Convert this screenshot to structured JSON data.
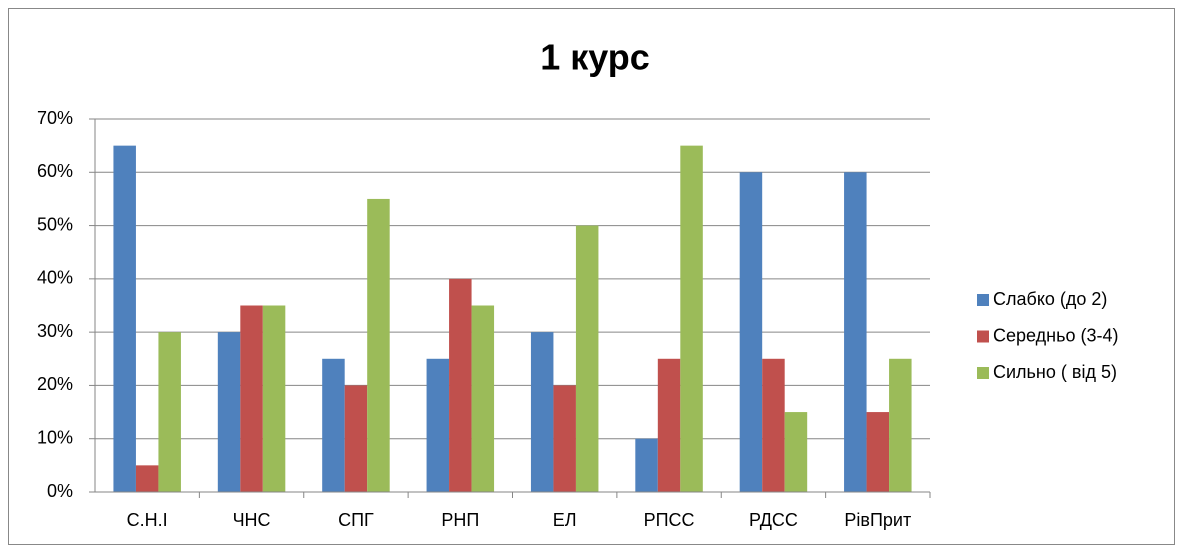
{
  "chart_data": {
    "type": "bar",
    "title": "1 курс",
    "categories": [
      "С.Н.І",
      "ЧНС",
      "СПГ",
      "РНП",
      "ЕЛ",
      "РПСС",
      "РДСС",
      "РівПрит"
    ],
    "series": [
      {
        "name": "Слабко (до 2)",
        "color": "#4f81bd",
        "values": [
          65,
          30,
          25,
          25,
          30,
          10,
          60,
          60
        ]
      },
      {
        "name": "Середньо (3-4)",
        "color": "#c0504d",
        "values": [
          5,
          35,
          20,
          40,
          20,
          25,
          25,
          15
        ]
      },
      {
        "name": "Сильно ( від 5)",
        "color": "#9bbb59",
        "values": [
          30,
          35,
          55,
          35,
          50,
          65,
          15,
          25
        ]
      }
    ],
    "ylim": [
      0,
      70
    ],
    "yticks": [
      {
        "value": 0,
        "label": "0%"
      },
      {
        "value": 10,
        "label": "10%"
      },
      {
        "value": 20,
        "label": "20%"
      },
      {
        "value": 30,
        "label": "30%"
      },
      {
        "value": 40,
        "label": "40%"
      },
      {
        "value": 50,
        "label": "50%"
      },
      {
        "value": 60,
        "label": "60%"
      },
      {
        "value": 70,
        "label": "70%"
      }
    ],
    "grid": true,
    "legend": "right"
  }
}
